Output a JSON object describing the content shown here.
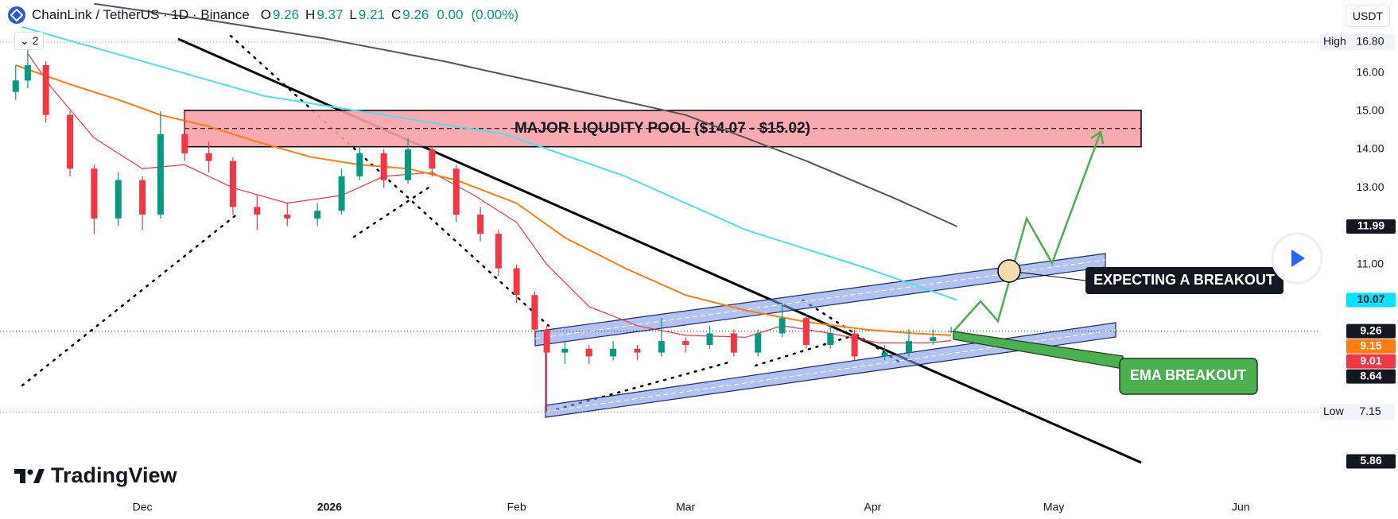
{
  "chart_data": {
    "type": "candlestick",
    "symbol": "ChainLink / TetherUS · 1D · Binance",
    "ohlc": [
      {
        "label": "O",
        "value": 9.26
      },
      {
        "label": "H",
        "value": 9.37
      },
      {
        "label": "L",
        "value": 9.21
      },
      {
        "label": "C",
        "value": 9.26
      }
    ],
    "change": {
      "value": 0,
      "label": "0.00"
    },
    "change_pct": {
      "value": 0,
      "label": "(0.00%)"
    },
    "currency": "USDT",
    "indicator_count": 2,
    "brand": "TradingView",
    "up_color": "#089981",
    "down_color": "#f23645",
    "xlim": [
      -23.6,
      195
    ],
    "xticks": [
      {
        "value": 0,
        "label": "Dec"
      },
      {
        "value": 31,
        "label": "2026"
      },
      {
        "value": 62,
        "label": "Feb"
      },
      {
        "value": 90,
        "label": "Mar"
      },
      {
        "value": 121,
        "label": "Apr"
      },
      {
        "value": 151,
        "label": "May"
      },
      {
        "value": 182,
        "label": "Jun"
      }
    ],
    "ylim": [
      5,
      17.9
    ],
    "yticks": [
      {
        "value": 16,
        "label": "16.00"
      },
      {
        "value": 15,
        "label": "15.00"
      },
      {
        "value": 14,
        "label": "14.00"
      },
      {
        "value": 13,
        "label": "13.00"
      },
      {
        "value": 11,
        "label": "11.00"
      }
    ],
    "candles": {
      "x": [
        -21,
        -19,
        -16,
        -12,
        -8,
        -4,
        0,
        3,
        7,
        11,
        15,
        19,
        24,
        29,
        33,
        36,
        40,
        44,
        48,
        52,
        56,
        59,
        62,
        65,
        67,
        70,
        74,
        78,
        82,
        86,
        90,
        94,
        98,
        102,
        106,
        110,
        114,
        118,
        123,
        127,
        131,
        134
      ],
      "open": [
        15.5,
        15.8,
        16.2,
        14.9,
        13.5,
        12.2,
        13.2,
        12.3,
        14.4,
        13.9,
        13.7,
        12.5,
        12.3,
        12.2,
        12.4,
        13.3,
        13.9,
        13.2,
        14.0,
        13.5,
        12.3,
        11.8,
        10.9,
        10.2,
        9.3,
        8.7,
        8.8,
        8.6,
        8.8,
        8.7,
        9.0,
        8.9,
        9.2,
        8.7,
        9.2,
        9.6,
        8.9,
        9.2,
        8.6,
        8.7,
        9.0,
        9.26
      ],
      "high": [
        16.2,
        16.8,
        16.3,
        15.0,
        13.6,
        13.4,
        13.3,
        15.0,
        15.0,
        14.2,
        13.8,
        12.8,
        12.6,
        12.6,
        13.5,
        14.1,
        14.0,
        14.3,
        14.1,
        13.6,
        12.5,
        11.9,
        11.0,
        10.3,
        9.4,
        9.0,
        8.9,
        9.0,
        8.9,
        9.6,
        9.1,
        9.4,
        9.3,
        9.3,
        10.0,
        9.7,
        9.4,
        9.3,
        8.9,
        9.3,
        9.3,
        9.37
      ],
      "low": [
        15.3,
        15.6,
        14.7,
        13.3,
        11.8,
        12.0,
        11.9,
        12.2,
        13.7,
        13.4,
        12.3,
        11.9,
        12.0,
        12.0,
        12.3,
        13.2,
        13.0,
        13.1,
        13.3,
        12.1,
        11.6,
        10.7,
        10.0,
        9.1,
        7.15,
        8.4,
        8.4,
        8.5,
        8.5,
        8.6,
        8.7,
        8.8,
        8.6,
        8.6,
        9.1,
        8.8,
        8.8,
        8.5,
        8.5,
        8.6,
        8.9,
        9.21
      ],
      "close": [
        15.8,
        16.2,
        14.9,
        13.5,
        12.2,
        13.2,
        12.3,
        14.4,
        13.9,
        13.7,
        12.5,
        12.3,
        12.2,
        12.4,
        13.3,
        13.9,
        13.2,
        14.0,
        13.5,
        12.3,
        11.8,
        10.9,
        10.2,
        9.3,
        8.7,
        8.8,
        8.6,
        8.8,
        8.7,
        9.0,
        8.9,
        9.2,
        8.7,
        9.2,
        9.6,
        8.9,
        9.2,
        8.6,
        8.7,
        9.0,
        9.1,
        9.26
      ]
    },
    "lines": [
      {
        "color": "#f23645",
        "x": [
          -19,
          -15,
          -8,
          0,
          7,
          15,
          24,
          33,
          40,
          48,
          55,
          62,
          67,
          74,
          82,
          90,
          100,
          106,
          114,
          122,
          130,
          134
        ],
        "values": [
          16.5,
          15.6,
          14.3,
          13.5,
          13.6,
          13.0,
          12.6,
          12.8,
          13.3,
          13.4,
          12.8,
          12.1,
          11.0,
          9.9,
          9.4,
          9.15,
          9.1,
          9.4,
          9.2,
          8.95,
          8.95,
          9.01
        ]
      },
      {
        "color": "#ff7d0f",
        "x": [
          -21,
          -12,
          -4,
          3,
          11,
          19,
          28,
          36,
          44,
          52,
          62,
          70,
          80,
          90,
          100,
          110,
          120,
          128,
          134
        ],
        "values": [
          16.2,
          15.7,
          15.3,
          14.9,
          14.6,
          14.2,
          13.8,
          13.6,
          13.5,
          13.2,
          12.6,
          11.7,
          10.9,
          10.2,
          9.8,
          9.5,
          9.3,
          9.2,
          9.15
        ]
      },
      {
        "color": "#4de1f0",
        "x": [
          -20,
          0,
          20,
          40,
          60,
          80,
          100,
          120,
          135
        ],
        "values": [
          17.2,
          16.3,
          15.4,
          14.9,
          14.4,
          13.3,
          11.9,
          10.9,
          10.07
        ]
      },
      {
        "color": "#555555",
        "x": [
          -8,
          10,
          30,
          50,
          70,
          90,
          110,
          125,
          135
        ],
        "values": [
          17.8,
          17.4,
          16.9,
          16.3,
          15.6,
          14.9,
          13.7,
          12.7,
          11.99
        ]
      }
    ],
    "price_tags": [
      {
        "value": 11.99,
        "color": "#131722",
        "text_color": "#ffffff"
      },
      {
        "value": 10.07,
        "color": "#00e5ff",
        "text_color": "#131722"
      },
      {
        "value": 9.26,
        "color": "#131722",
        "text_color": "#ffffff"
      },
      {
        "value": 9.15,
        "color": "#ff7d0f",
        "text_color": "#ffffff"
      },
      {
        "value": 9.01,
        "color": "#f23645",
        "text_color": "#ffffff"
      },
      {
        "value": 8.64,
        "color": "#131722",
        "text_color": "#ffffff"
      },
      {
        "value": 5.86,
        "color": "#131722",
        "text_color": "#ffffff"
      }
    ],
    "high_marker": {
      "text": "High",
      "price": {
        "value": 16.8,
        "label": "16.80"
      }
    },
    "low_marker": {
      "text": "Low",
      "price": 7.15
    },
    "zone": {
      "label": "MAJOR LIQUDITY POOL ($14.07 - $15.02)",
      "low": 14.07,
      "high": 15.02,
      "color": "#f7a1a8"
    },
    "annotations": [
      "EXPECTING A BREAKOUT",
      "EMA BREAKOUT"
    ]
  }
}
